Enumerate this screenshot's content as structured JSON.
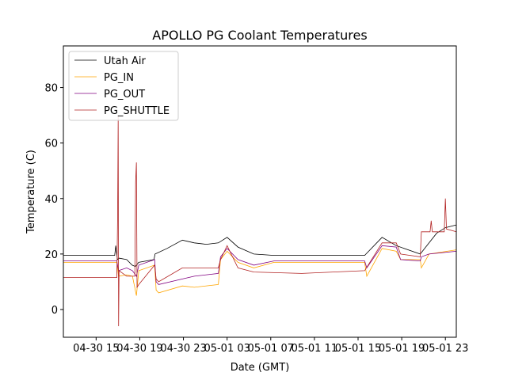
{
  "chart_data": {
    "type": "line",
    "title": "APOLLO PG Coolant Temperatures",
    "xlabel": "Date (GMT)",
    "ylabel": "Temperature (C)",
    "xlim": [
      0,
      36
    ],
    "ylim": [
      -10,
      95
    ],
    "x_unit": "hours",
    "x_ticks": [
      {
        "value": 3,
        "label": "04-30 15"
      },
      {
        "value": 7,
        "label": "04-30 19"
      },
      {
        "value": 11,
        "label": "04-30 23"
      },
      {
        "value": 15,
        "label": "05-01 03"
      },
      {
        "value": 19,
        "label": "05-01 07"
      },
      {
        "value": 23,
        "label": "05-01 11"
      },
      {
        "value": 27,
        "label": "05-01 15"
      },
      {
        "value": 31,
        "label": "05-01 19"
      },
      {
        "value": 35,
        "label": "05-01 23"
      }
    ],
    "y_ticks": [
      {
        "value": 0,
        "label": "0"
      },
      {
        "value": 20,
        "label": "20"
      },
      {
        "value": 40,
        "label": "40"
      },
      {
        "value": 60,
        "label": "60"
      },
      {
        "value": 80,
        "label": "80"
      }
    ],
    "grid": false,
    "legend_position": "top-left",
    "series": [
      {
        "name": "Utah Air",
        "color": "#000000",
        "width": 0.8,
        "points": [
          [
            0,
            19.5
          ],
          [
            4.7,
            19.5
          ],
          [
            4.8,
            23
          ],
          [
            4.95,
            18
          ],
          [
            5.1,
            18.5
          ],
          [
            5.8,
            18
          ],
          [
            6.3,
            16
          ],
          [
            6.6,
            15.5
          ],
          [
            6.9,
            17
          ],
          [
            8.3,
            18
          ],
          [
            8.4,
            20
          ],
          [
            9.5,
            22
          ],
          [
            10.9,
            25
          ],
          [
            12,
            24
          ],
          [
            13.1,
            23.5
          ],
          [
            14.2,
            24
          ],
          [
            15,
            26
          ],
          [
            16,
            22.5
          ],
          [
            17.45,
            20
          ],
          [
            19.3,
            19.5
          ],
          [
            27.6,
            19.5
          ],
          [
            29.2,
            26
          ],
          [
            30.5,
            23
          ],
          [
            32.7,
            20
          ],
          [
            33.5,
            24
          ],
          [
            34.2,
            27.5
          ],
          [
            35,
            29.5
          ],
          [
            36,
            30.5
          ]
        ]
      },
      {
        "name": "PG_IN",
        "color": "#ffa500",
        "width": 0.8,
        "points": [
          [
            0,
            17
          ],
          [
            4.9,
            17
          ],
          [
            5.05,
            12
          ],
          [
            5.8,
            12.5
          ],
          [
            6.33,
            12
          ],
          [
            6.69,
            5
          ],
          [
            6.91,
            14
          ],
          [
            8.36,
            16
          ],
          [
            8.5,
            7
          ],
          [
            8.73,
            6
          ],
          [
            10.9,
            8.5
          ],
          [
            12,
            8
          ],
          [
            14.2,
            9
          ],
          [
            14.4,
            18
          ],
          [
            15,
            21
          ],
          [
            16,
            17
          ],
          [
            17.45,
            15
          ],
          [
            19.3,
            17
          ],
          [
            27.6,
            17
          ],
          [
            27.8,
            12
          ],
          [
            29.2,
            22
          ],
          [
            30.5,
            21
          ],
          [
            30.9,
            18
          ],
          [
            32.7,
            18
          ],
          [
            32.8,
            15
          ],
          [
            33.5,
            20
          ],
          [
            36,
            21.5
          ]
        ]
      },
      {
        "name": "PG_OUT",
        "color": "#800080",
        "width": 0.8,
        "points": [
          [
            0,
            17.5
          ],
          [
            4.9,
            17.5
          ],
          [
            5.05,
            14
          ],
          [
            5.8,
            15
          ],
          [
            6.33,
            14
          ],
          [
            6.69,
            12
          ],
          [
            6.91,
            16
          ],
          [
            8.36,
            18
          ],
          [
            8.5,
            10
          ],
          [
            8.73,
            9
          ],
          [
            10.9,
            11
          ],
          [
            12,
            12
          ],
          [
            14.2,
            13
          ],
          [
            14.4,
            19
          ],
          [
            15,
            22
          ],
          [
            16,
            18
          ],
          [
            17.45,
            16
          ],
          [
            19.3,
            17.5
          ],
          [
            27.6,
            17.5
          ],
          [
            27.8,
            15
          ],
          [
            29.2,
            23
          ],
          [
            30.5,
            22.5
          ],
          [
            30.9,
            18
          ],
          [
            32.7,
            17.5
          ],
          [
            32.8,
            19
          ],
          [
            33.5,
            20
          ],
          [
            36,
            21
          ]
        ]
      },
      {
        "name": "PG_SHUTTLE",
        "color": "#b22222",
        "width": 0.8,
        "points": [
          [
            0,
            11.5
          ],
          [
            4.9,
            11.5
          ],
          [
            4.97,
            34
          ],
          [
            5.02,
            70
          ],
          [
            5.06,
            -6
          ],
          [
            5.1,
            14
          ],
          [
            5.8,
            12
          ],
          [
            6.55,
            12
          ],
          [
            6.62,
            46
          ],
          [
            6.69,
            53
          ],
          [
            6.75,
            8
          ],
          [
            6.91,
            9
          ],
          [
            8.36,
            16
          ],
          [
            8.5,
            11
          ],
          [
            8.73,
            10
          ],
          [
            10.9,
            15
          ],
          [
            12,
            15
          ],
          [
            14.2,
            15
          ],
          [
            14.4,
            18
          ],
          [
            15,
            23
          ],
          [
            16,
            15
          ],
          [
            17.45,
            13.5
          ],
          [
            21.8,
            13
          ],
          [
            27.6,
            14
          ],
          [
            29.2,
            24
          ],
          [
            30.5,
            24
          ],
          [
            30.9,
            20
          ],
          [
            32.7,
            19
          ],
          [
            32.8,
            28
          ],
          [
            33.6,
            28
          ],
          [
            33.7,
            32
          ],
          [
            33.8,
            28
          ],
          [
            34.9,
            28
          ],
          [
            35,
            40
          ],
          [
            35.1,
            29
          ],
          [
            36,
            28
          ]
        ]
      }
    ]
  }
}
